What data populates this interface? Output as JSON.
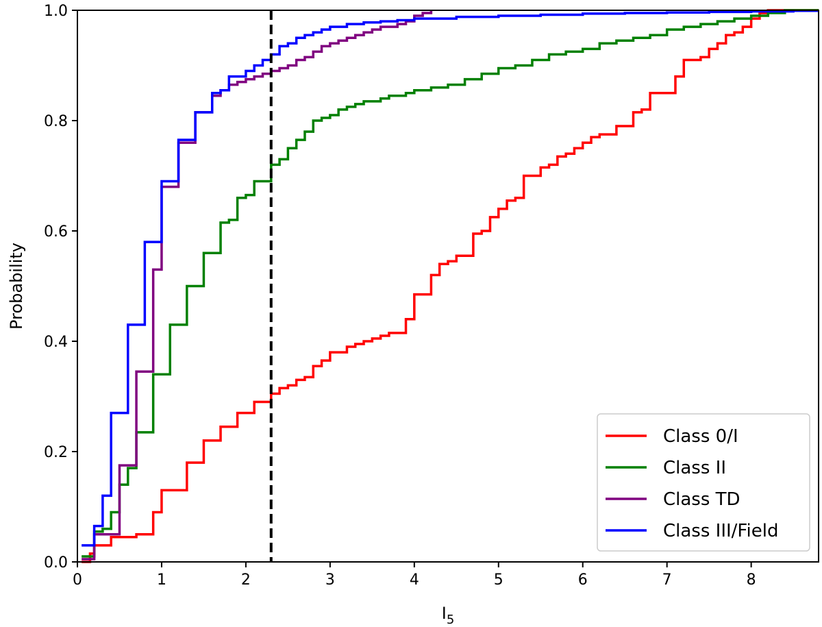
{
  "chart_data": {
    "type": "line",
    "title": "",
    "xlabel": "I",
    "xlabel_subscript": "5",
    "ylabel": "Probability",
    "xlim": [
      0,
      8.8
    ],
    "ylim": [
      0,
      1.0
    ],
    "xticks": [
      0,
      1,
      2,
      3,
      4,
      5,
      6,
      7,
      8
    ],
    "xtick_labels": [
      "0",
      "1",
      "2",
      "3",
      "4",
      "5",
      "6",
      "7",
      "8"
    ],
    "yticks": [
      0.0,
      0.2,
      0.4,
      0.6,
      0.8,
      1.0
    ],
    "ytick_labels": [
      "0.0",
      "0.2",
      "0.4",
      "0.6",
      "0.8",
      "1.0"
    ],
    "grid": false,
    "legend_position": "lower-right",
    "vline": {
      "x": 2.3,
      "style": "dashed",
      "color": "#000000"
    },
    "series": [
      {
        "name": "Class 0/I",
        "color": "#ff0000",
        "x": [
          0.05,
          0.15,
          0.2,
          0.3,
          0.4,
          0.5,
          0.6,
          0.7,
          0.8,
          0.9,
          1.0,
          1.1,
          1.2,
          1.3,
          1.4,
          1.5,
          1.6,
          1.7,
          1.8,
          1.9,
          2.0,
          2.1,
          2.2,
          2.3,
          2.4,
          2.5,
          2.6,
          2.7,
          2.8,
          2.9,
          3.0,
          3.1,
          3.2,
          3.3,
          3.4,
          3.5,
          3.6,
          3.7,
          3.8,
          3.9,
          4.0,
          4.1,
          4.2,
          4.3,
          4.4,
          4.5,
          4.6,
          4.7,
          4.8,
          4.9,
          5.0,
          5.1,
          5.2,
          5.3,
          5.4,
          5.5,
          5.6,
          5.7,
          5.8,
          5.9,
          6.0,
          6.1,
          6.2,
          6.3,
          6.4,
          6.5,
          6.6,
          6.7,
          6.8,
          6.9,
          7.0,
          7.1,
          7.2,
          7.3,
          7.4,
          7.5,
          7.6,
          7.7,
          7.8,
          7.9,
          8.0,
          8.1,
          8.2,
          8.3,
          8.8
        ],
        "y": [
          0.0,
          0.015,
          0.03,
          0.03,
          0.045,
          0.045,
          0.045,
          0.05,
          0.05,
          0.09,
          0.13,
          0.13,
          0.13,
          0.18,
          0.18,
          0.22,
          0.22,
          0.245,
          0.245,
          0.27,
          0.27,
          0.29,
          0.29,
          0.305,
          0.315,
          0.32,
          0.33,
          0.335,
          0.355,
          0.365,
          0.38,
          0.38,
          0.39,
          0.395,
          0.4,
          0.405,
          0.41,
          0.415,
          0.415,
          0.44,
          0.485,
          0.485,
          0.52,
          0.54,
          0.545,
          0.555,
          0.555,
          0.595,
          0.6,
          0.625,
          0.64,
          0.655,
          0.66,
          0.7,
          0.7,
          0.715,
          0.72,
          0.735,
          0.74,
          0.75,
          0.76,
          0.77,
          0.775,
          0.775,
          0.79,
          0.79,
          0.815,
          0.82,
          0.85,
          0.85,
          0.85,
          0.88,
          0.91,
          0.91,
          0.915,
          0.93,
          0.94,
          0.955,
          0.96,
          0.97,
          0.985,
          0.995,
          1.0,
          1.0,
          1.0
        ]
      },
      {
        "name": "Class II",
        "color": "#008000",
        "x": [
          0.05,
          0.15,
          0.2,
          0.3,
          0.4,
          0.5,
          0.6,
          0.7,
          0.8,
          0.9,
          1.0,
          1.1,
          1.2,
          1.3,
          1.4,
          1.5,
          1.6,
          1.7,
          1.8,
          1.9,
          2.0,
          2.1,
          2.2,
          2.3,
          2.4,
          2.5,
          2.6,
          2.7,
          2.8,
          2.9,
          3.0,
          3.1,
          3.2,
          3.3,
          3.4,
          3.5,
          3.6,
          3.7,
          3.8,
          3.9,
          4.0,
          4.2,
          4.4,
          4.6,
          4.8,
          5.0,
          5.2,
          5.4,
          5.6,
          5.8,
          6.0,
          6.2,
          6.4,
          6.6,
          6.8,
          7.0,
          7.2,
          7.4,
          7.6,
          7.8,
          8.0,
          8.2,
          8.4,
          8.8
        ],
        "y": [
          0.01,
          0.01,
          0.055,
          0.06,
          0.09,
          0.14,
          0.17,
          0.235,
          0.235,
          0.34,
          0.34,
          0.43,
          0.43,
          0.5,
          0.5,
          0.56,
          0.56,
          0.615,
          0.62,
          0.66,
          0.665,
          0.69,
          0.69,
          0.72,
          0.73,
          0.75,
          0.765,
          0.78,
          0.8,
          0.805,
          0.81,
          0.82,
          0.825,
          0.83,
          0.835,
          0.835,
          0.84,
          0.845,
          0.845,
          0.85,
          0.855,
          0.86,
          0.865,
          0.875,
          0.885,
          0.895,
          0.9,
          0.91,
          0.92,
          0.925,
          0.93,
          0.94,
          0.945,
          0.95,
          0.955,
          0.965,
          0.97,
          0.975,
          0.98,
          0.985,
          0.99,
          0.995,
          1.0,
          1.0
        ]
      },
      {
        "name": "Class TD",
        "color": "#800080",
        "x": [
          0.05,
          0.15,
          0.2,
          0.3,
          0.4,
          0.5,
          0.6,
          0.7,
          0.8,
          0.9,
          1.0,
          1.1,
          1.2,
          1.3,
          1.4,
          1.5,
          1.6,
          1.7,
          1.8,
          1.9,
          2.0,
          2.1,
          2.2,
          2.3,
          2.4,
          2.5,
          2.6,
          2.7,
          2.8,
          2.9,
          3.0,
          3.1,
          3.2,
          3.3,
          3.4,
          3.5,
          3.6,
          3.7,
          3.8,
          3.9,
          4.0,
          4.1,
          4.2
        ],
        "y": [
          0.005,
          0.005,
          0.05,
          0.05,
          0.05,
          0.175,
          0.175,
          0.345,
          0.345,
          0.53,
          0.68,
          0.68,
          0.76,
          0.76,
          0.815,
          0.815,
          0.845,
          0.855,
          0.865,
          0.87,
          0.875,
          0.88,
          0.885,
          0.89,
          0.895,
          0.9,
          0.91,
          0.915,
          0.925,
          0.935,
          0.94,
          0.945,
          0.95,
          0.955,
          0.96,
          0.965,
          0.97,
          0.97,
          0.975,
          0.98,
          0.99,
          0.995,
          1.0
        ]
      },
      {
        "name": "Class III/Field",
        "color": "#0000ff",
        "x": [
          0.05,
          0.15,
          0.2,
          0.3,
          0.4,
          0.5,
          0.6,
          0.7,
          0.8,
          0.9,
          1.0,
          1.1,
          1.2,
          1.3,
          1.4,
          1.5,
          1.6,
          1.7,
          1.8,
          1.9,
          2.0,
          2.1,
          2.2,
          2.3,
          2.4,
          2.5,
          2.6,
          2.7,
          2.8,
          2.9,
          3.0,
          3.2,
          3.4,
          3.6,
          3.8,
          4.0,
          4.5,
          5.0,
          5.5,
          6.0,
          6.5,
          7.0,
          7.5,
          8.0,
          8.5,
          8.8
        ],
        "y": [
          0.03,
          0.03,
          0.065,
          0.12,
          0.27,
          0.27,
          0.43,
          0.43,
          0.58,
          0.58,
          0.69,
          0.69,
          0.765,
          0.765,
          0.815,
          0.815,
          0.85,
          0.855,
          0.88,
          0.88,
          0.89,
          0.9,
          0.91,
          0.92,
          0.935,
          0.94,
          0.95,
          0.955,
          0.96,
          0.965,
          0.97,
          0.975,
          0.978,
          0.98,
          0.982,
          0.985,
          0.988,
          0.99,
          0.992,
          0.994,
          0.995,
          0.996,
          0.997,
          0.998,
          0.999,
          1.0
        ]
      }
    ]
  }
}
